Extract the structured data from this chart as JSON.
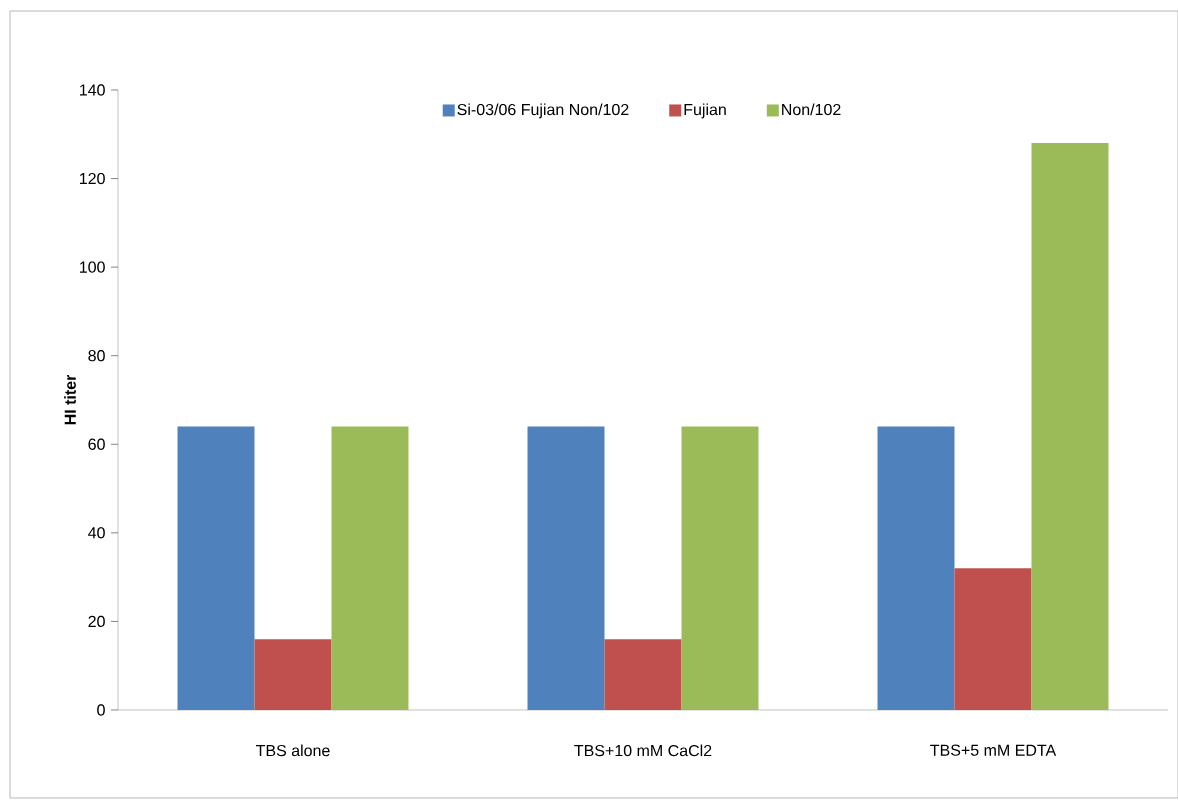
{
  "chart_data": {
    "type": "bar",
    "ylabel": "HI titer",
    "categories": [
      "TBS alone",
      "TBS+10 mM  CaCl2",
      "TBS+5 mM  EDTA"
    ],
    "series": [
      {
        "name": "Si-03/06 Fujian Non/102",
        "color": "#4f81bd",
        "values": [
          64,
          64,
          64
        ]
      },
      {
        "name": "Fujian",
        "color": "#c0504d",
        "values": [
          16,
          16,
          32
        ]
      },
      {
        "name": "Non/102",
        "color": "#9bbb59",
        "values": [
          64,
          64,
          128
        ]
      }
    ],
    "ylim": [
      0,
      140
    ],
    "yticks": [
      0,
      20,
      40,
      60,
      80,
      100,
      120,
      140
    ],
    "grid": false,
    "legend": "top"
  }
}
